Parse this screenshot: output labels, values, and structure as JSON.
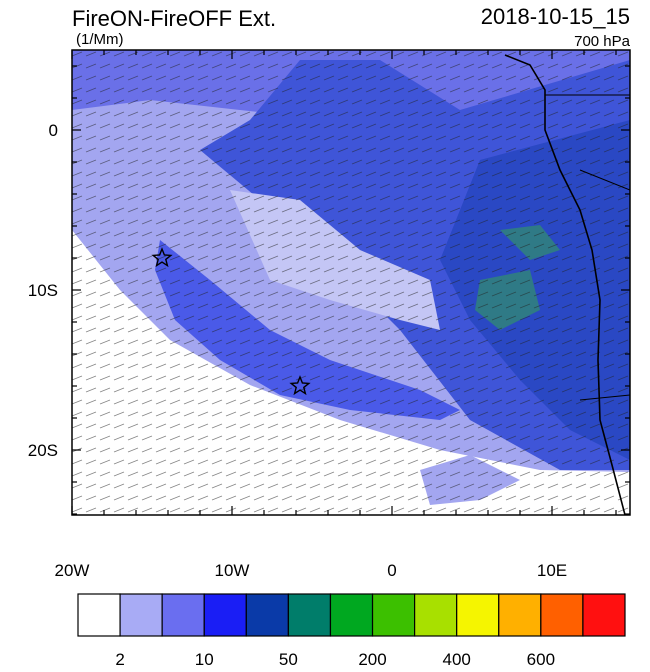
{
  "header": {
    "title": "FireON-FireOFF Ext.",
    "units": "(1/Mm)",
    "datetime": "2018-10-15_15",
    "level": "700 hPa"
  },
  "axes": {
    "y_labels": [
      "0",
      "10S",
      "20S"
    ],
    "x_labels": [
      "20W",
      "10W",
      "0",
      "10E"
    ]
  },
  "colorbar": {
    "colors": [
      "#ffffff",
      "#a8abf5",
      "#6a6ef0",
      "#1a1ef5",
      "#0a3aa8",
      "#007d6a",
      "#00a820",
      "#3cc000",
      "#a8e000",
      "#f5f500",
      "#ffb000",
      "#ff6000",
      "#ff1010"
    ],
    "labels": [
      "2",
      "10",
      "50",
      "200",
      "400",
      "600"
    ]
  }
}
